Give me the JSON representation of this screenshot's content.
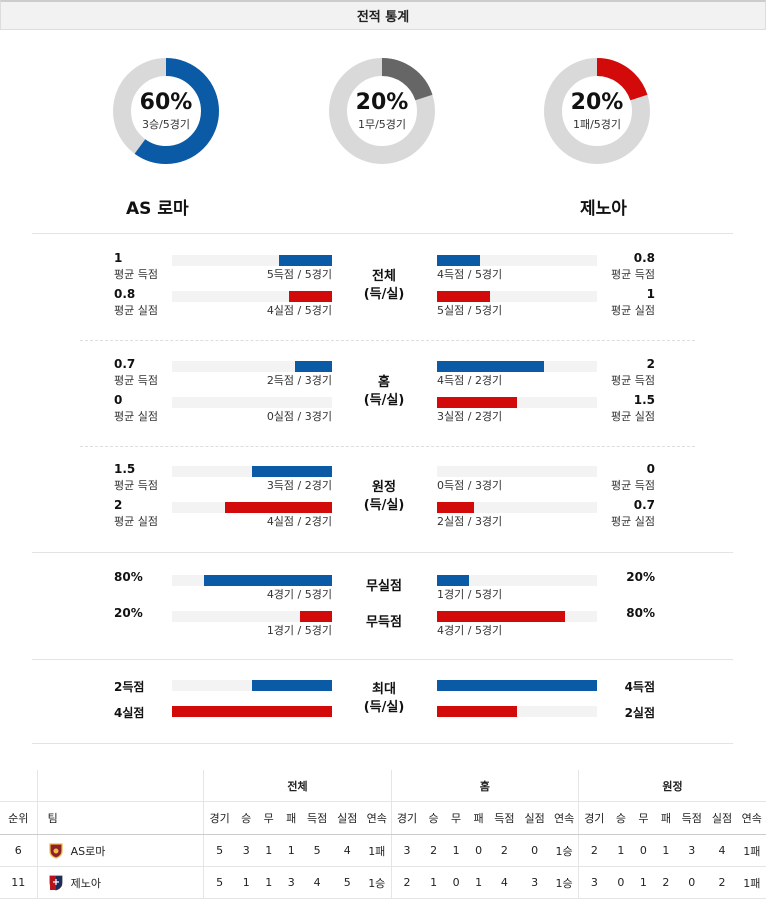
{
  "header": {
    "title": "전적 통계"
  },
  "summary": [
    {
      "pct": "60%",
      "sub": "3승/5경기",
      "ratio": 0.6,
      "color": "#0b5aa6"
    },
    {
      "pct": "20%",
      "sub": "1무/5경기",
      "ratio": 0.2,
      "color": "#666666"
    },
    {
      "pct": "20%",
      "sub": "1패/5경기",
      "ratio": 0.2,
      "color": "#d20a0a"
    }
  ],
  "teams": {
    "home": "AS 로마",
    "away": "제노아"
  },
  "sections": [
    {
      "category": [
        "전체",
        "(득/실)"
      ],
      "rows": [
        {
          "left_val": "1",
          "left_cap": "평균 득점",
          "left_bar": "5득점 / 5경기",
          "left_ratio": 0.33,
          "right_val": "0.8",
          "right_cap": "평균 득점",
          "right_bar": "4득점 / 5경기",
          "right_ratio": 0.27,
          "color": "blue"
        },
        {
          "left_val": "0.8",
          "left_cap": "평균 실점",
          "left_bar": "4실점 / 5경기",
          "left_ratio": 0.27,
          "right_val": "1",
          "right_cap": "평균 실점",
          "right_bar": "5실점 / 5경기",
          "right_ratio": 0.33,
          "color": "red"
        }
      ]
    },
    {
      "category": [
        "홈",
        "(득/실)"
      ],
      "rows": [
        {
          "left_val": "0.7",
          "left_cap": "평균 득점",
          "left_bar": "2득점 / 3경기",
          "left_ratio": 0.23,
          "right_val": "2",
          "right_cap": "평균 득점",
          "right_bar": "4득점 / 2경기",
          "right_ratio": 0.67,
          "color": "blue"
        },
        {
          "left_val": "0",
          "left_cap": "평균 실점",
          "left_bar": "0실점 / 3경기",
          "left_ratio": 0,
          "right_val": "1.5",
          "right_cap": "평균 실점",
          "right_bar": "3실점 / 2경기",
          "right_ratio": 0.5,
          "color": "red"
        }
      ]
    },
    {
      "category": [
        "원정",
        "(득/실)"
      ],
      "rows": [
        {
          "left_val": "1.5",
          "left_cap": "평균 득점",
          "left_bar": "3득점 / 2경기",
          "left_ratio": 0.5,
          "right_val": "0",
          "right_cap": "평균 득점",
          "right_bar": "0득점 / 3경기",
          "right_ratio": 0,
          "color": "blue"
        },
        {
          "left_val": "2",
          "left_cap": "평균 실점",
          "left_bar": "4실점 / 2경기",
          "left_ratio": 0.67,
          "right_val": "0.7",
          "right_cap": "평균 실점",
          "right_bar": "2실점 / 3경기",
          "right_ratio": 0.23,
          "color": "red"
        }
      ]
    },
    {
      "category": [
        "무실점"
      ],
      "category2": [
        "무득점"
      ],
      "rows": [
        {
          "left_val": "80%",
          "left_cap": "",
          "left_bar": "4경기 / 5경기",
          "left_ratio": 0.8,
          "right_val": "20%",
          "right_cap": "",
          "right_bar": "1경기 / 5경기",
          "right_ratio": 0.2,
          "color": "blue"
        },
        {
          "left_val": "20%",
          "left_cap": "",
          "left_bar": "1경기 / 5경기",
          "left_ratio": 0.2,
          "right_val": "80%",
          "right_cap": "",
          "right_bar": "4경기 / 5경기",
          "right_ratio": 0.8,
          "color": "red"
        }
      ]
    },
    {
      "category": [
        "최대",
        "(득/실)"
      ],
      "rows": [
        {
          "left_val": "2득점",
          "left_cap": "",
          "left_bar": "",
          "left_ratio": 0.5,
          "right_val": "4득점",
          "right_cap": "",
          "right_bar": "",
          "right_ratio": 1.0,
          "color": "blue"
        },
        {
          "left_val": "4실점",
          "left_cap": "",
          "left_bar": "",
          "left_ratio": 1.0,
          "right_val": "2실점",
          "right_cap": "",
          "right_bar": "",
          "right_ratio": 0.5,
          "color": "red"
        }
      ]
    }
  ],
  "standings": {
    "groups": [
      "전체",
      "홈",
      "원정"
    ],
    "headers": [
      "순위",
      "팀",
      "경기",
      "승",
      "무",
      "패",
      "득점",
      "실점",
      "연속",
      "경기",
      "승",
      "무",
      "패",
      "득점",
      "실점",
      "연속",
      "경기",
      "승",
      "무",
      "패",
      "득점",
      "실점",
      "연속"
    ],
    "rows": [
      {
        "rank": "6",
        "team": "AS로마",
        "logo": "roma-logo",
        "cells": [
          "5",
          "3",
          "1",
          "1",
          "5",
          "4",
          "1패",
          "3",
          "2",
          "1",
          "0",
          "2",
          "0",
          "1승",
          "2",
          "1",
          "0",
          "1",
          "3",
          "4",
          "1패"
        ]
      },
      {
        "rank": "11",
        "team": "제노아",
        "logo": "genoa-logo",
        "cells": [
          "5",
          "1",
          "1",
          "3",
          "4",
          "5",
          "1승",
          "2",
          "1",
          "0",
          "1",
          "4",
          "3",
          "1승",
          "3",
          "0",
          "1",
          "2",
          "0",
          "2",
          "1패"
        ]
      }
    ]
  }
}
